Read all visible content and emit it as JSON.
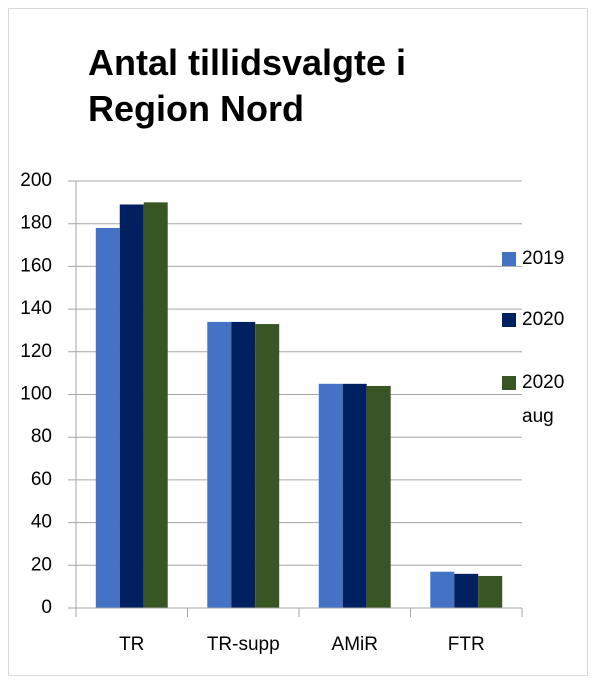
{
  "chart_data": {
    "type": "bar",
    "title": "Antal tillidsvalgte i Region Nord",
    "categories": [
      "TR",
      "TR-supp",
      "AMiR",
      "FTR"
    ],
    "series": [
      {
        "name": "2019",
        "color": "#4472c4",
        "values": [
          178,
          134,
          105,
          17
        ]
      },
      {
        "name": "2020",
        "color": "#002060",
        "values": [
          189,
          134,
          105,
          16
        ]
      },
      {
        "name": "2020 aug",
        "color": "#375623",
        "values": [
          190,
          133,
          104,
          15
        ]
      }
    ],
    "ylim": [
      0,
      200
    ],
    "yticks": [
      0,
      20,
      40,
      60,
      80,
      100,
      120,
      140,
      160,
      180,
      200
    ],
    "grid": true,
    "legend": "right"
  }
}
